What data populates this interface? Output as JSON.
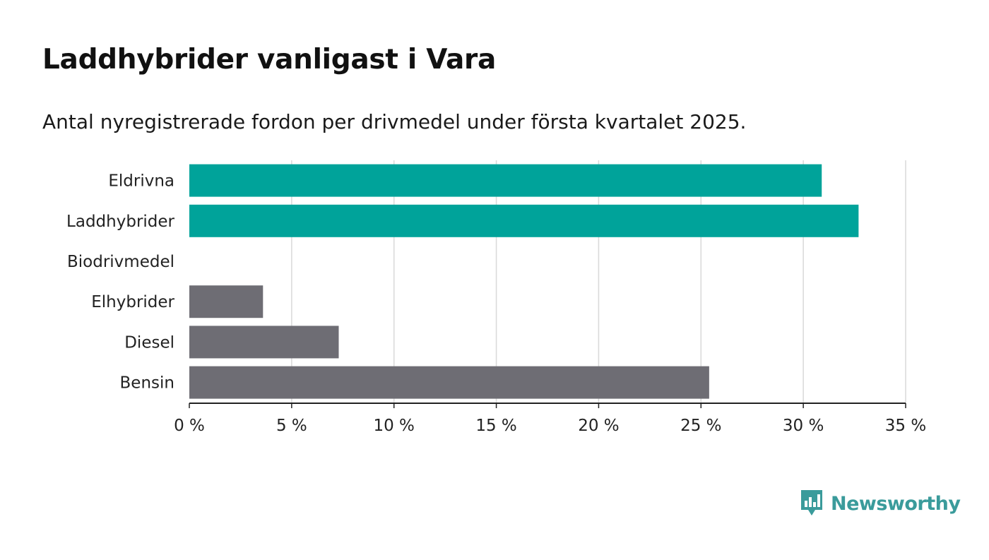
{
  "title": "Laddhybrider vanligast i Vara",
  "subtitle": "Antal nyregistrerade fordon per drivmedel under första kvartalet 2025.",
  "brand": {
    "name": "Newsworthy",
    "color": "#3a9b9b",
    "icon": "bar-chart-speech-bubble-icon"
  },
  "chart_data": {
    "type": "bar",
    "orientation": "horizontal",
    "categories": [
      "Eldrivna",
      "Laddhybrider",
      "Biodrivmedel",
      "Elhybrider",
      "Diesel",
      "Bensin"
    ],
    "values": [
      30.9,
      32.7,
      0,
      3.6,
      7.3,
      25.4
    ],
    "colors": [
      "#00a39a",
      "#00a39a",
      "#6e6d74",
      "#6e6d74",
      "#6e6d74",
      "#6e6d74"
    ],
    "xlim": [
      0,
      35
    ],
    "ticks": [
      0,
      5,
      10,
      15,
      20,
      25,
      30,
      35
    ],
    "tick_labels": [
      "0 %",
      "5 %",
      "10 %",
      "15 %",
      "20 %",
      "25 %",
      "30 %",
      "35 %"
    ],
    "grid": true,
    "xlabel": "",
    "ylabel": ""
  }
}
